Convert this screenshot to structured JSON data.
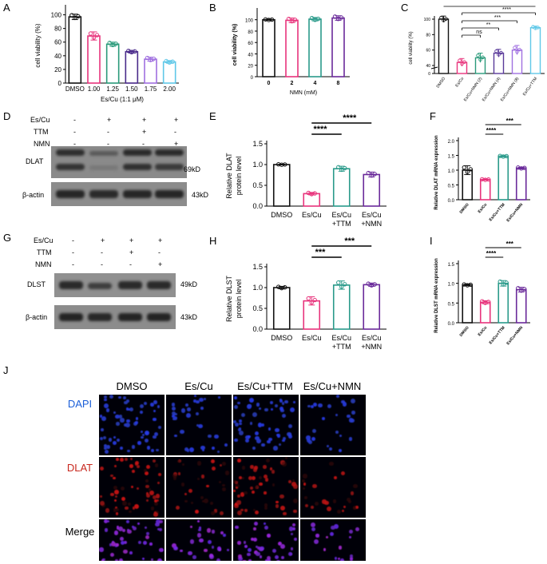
{
  "panels": {
    "A": "A",
    "B": "B",
    "C": "C",
    "D": "D",
    "E": "E",
    "F": "F",
    "G": "G",
    "H": "H",
    "I": "I",
    "J": "J"
  },
  "colors": {
    "dmso": "#111111",
    "escu": "#e8347c",
    "ttm": "#2a9a8a",
    "nmn": "#6a2a9a",
    "a_1_00": "#e8347c",
    "a_1_25": "#2a9a7a",
    "a_1_50": "#4a2a8a",
    "a_1_75": "#a070e0",
    "a_2_00": "#60c8e8",
    "c_nmn2": "#2a9a7a",
    "c_nmn4": "#5a3a9a",
    "c_nmn8": "#a070e0",
    "c_ttm": "#60c8e8",
    "dapi": "#1a5ed8",
    "dlat_if": "#c8281e"
  },
  "chart_data": [
    {
      "panel": "A",
      "type": "bar",
      "categories": [
        "DMSO",
        "1.00",
        "1.25",
        "1.50",
        "1.75",
        "2.00"
      ],
      "values": [
        97,
        69,
        57,
        46,
        35,
        31
      ],
      "errors": [
        4,
        6,
        3,
        2,
        3,
        2
      ],
      "xlabel": "Es/Cu (1:1 μM)",
      "ylabel": "cell viability (%)",
      "yticks": [
        "0",
        "20",
        "40",
        "60",
        "80",
        "100"
      ],
      "ylim": [
        0,
        110
      ]
    },
    {
      "panel": "B",
      "type": "bar",
      "categories": [
        "0",
        "2",
        "4",
        "8"
      ],
      "values": [
        100,
        99,
        101,
        103
      ],
      "errors": [
        1,
        4,
        3,
        4
      ],
      "xlabel": "NMN (mM)",
      "ylabel": "cell viability (%)",
      "yticks": [
        "0",
        "20",
        "40",
        "60",
        "80",
        "100"
      ],
      "ylim": [
        0,
        115
      ]
    },
    {
      "panel": "C",
      "type": "bar",
      "categories": [
        "DMSO",
        "Es/Cu",
        "Es/Cu+NMN (2)",
        "Es/Cu+NMN (4)",
        "Es/Cu+NMN (8)",
        "Es/Cu+TTM"
      ],
      "values": [
        100,
        44,
        50,
        56,
        60,
        89
      ],
      "errors": [
        4,
        5,
        6,
        5,
        6,
        2
      ],
      "ylabel": "cell viability (%)",
      "yticks": [
        "0",
        "40",
        "60",
        "80",
        "100"
      ],
      "significance": [
        "ns",
        "**",
        "***",
        "****"
      ]
    },
    {
      "panel": "E",
      "type": "bar",
      "categories": [
        "DMSO",
        "Es/Cu",
        "Es/Cu\n+TTM",
        "Es/Cu\n+NMN"
      ],
      "values": [
        1.0,
        0.3,
        0.9,
        0.76
      ],
      "errors": [
        0.01,
        0.03,
        0.06,
        0.06
      ],
      "ylabel": "Relative  DLAT\nprotein level",
      "yticks": [
        "0.0",
        "0.5",
        "1.0",
        "1.5"
      ],
      "ylim": [
        0,
        1.5
      ],
      "significance": [
        "****",
        "****"
      ]
    },
    {
      "panel": "F",
      "type": "bar",
      "categories": [
        "DMSO",
        "Es/Cu",
        "Es/Cu+TTM",
        "Es/Cu+NMN"
      ],
      "values": [
        1.0,
        0.68,
        1.47,
        1.07
      ],
      "errors": [
        0.15,
        0.02,
        0.02,
        0.03
      ],
      "ylabel": "Relative DLAT mRNA expression",
      "yticks": [
        "0.0",
        "0.5",
        "1.0",
        "1.5",
        "2.0"
      ],
      "ylim": [
        0,
        2.0
      ],
      "significance": [
        "****",
        "***"
      ]
    },
    {
      "panel": "H",
      "type": "bar",
      "categories": [
        "DMSO",
        "Es/Cu",
        "Es/Cu\n+TTM",
        "Es/Cu\n+NMN"
      ],
      "values": [
        1.0,
        0.68,
        1.06,
        1.07
      ],
      "errors": [
        0.03,
        0.1,
        0.1,
        0.04
      ],
      "ylabel": "Relative DLST\nprotein level",
      "yticks": [
        "0.0",
        "0.5",
        "1.0",
        "1.5"
      ],
      "ylim": [
        0,
        1.5
      ],
      "significance": [
        "***",
        "***"
      ]
    },
    {
      "panel": "I",
      "type": "bar",
      "categories": [
        "DMSO",
        "Es/Cu",
        "Es/Cu+TTM",
        "Es/Cu+NMN"
      ],
      "values": [
        0.96,
        0.52,
        1.0,
        0.84
      ],
      "errors": [
        0.02,
        0.04,
        0.07,
        0.06
      ],
      "ylabel": "Relative DLST mRNA expression",
      "yticks": [
        "0.0",
        "0.5",
        "1.0",
        "1.5"
      ],
      "ylim": [
        0,
        1.5
      ],
      "significance": [
        "****",
        "***"
      ]
    }
  ],
  "blotD": {
    "rows": [
      "Es/Cu",
      "TTM",
      "NMN"
    ],
    "signs": [
      [
        "-",
        "+",
        "+",
        "+"
      ],
      [
        "-",
        "-",
        "+",
        "-"
      ],
      [
        "-",
        "-",
        "-",
        "+"
      ]
    ],
    "band": "DLAT",
    "band_kd": "69kD",
    "control": "β-actin",
    "control_kd": "43kD"
  },
  "blotG": {
    "rows": [
      "Es/Cu",
      "TTM",
      "NMN"
    ],
    "signs": [
      [
        "-",
        "+",
        "+",
        "+"
      ],
      [
        "-",
        "-",
        "+",
        "-"
      ],
      [
        "-",
        "-",
        "-",
        "+"
      ]
    ],
    "band": "DLST",
    "band_kd": "49kD",
    "control": "β-actin",
    "control_kd": "43kD"
  },
  "panelJ": {
    "columns": [
      "DMSO",
      "Es/Cu",
      "Es/Cu+TTM",
      "Es/Cu+NMN"
    ],
    "rows": [
      "DAPI",
      "DLAT",
      "Merge"
    ]
  }
}
